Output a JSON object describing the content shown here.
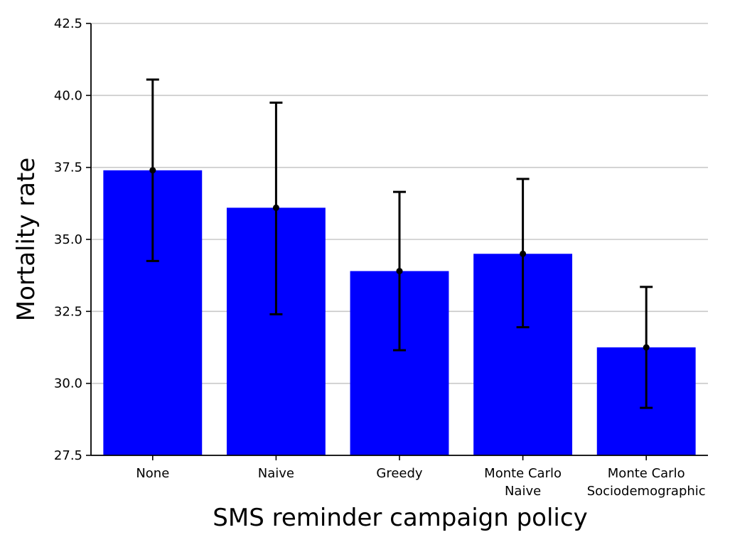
{
  "chart_data": {
    "type": "bar",
    "categories": [
      [
        "None"
      ],
      [
        "Naive"
      ],
      [
        "Greedy"
      ],
      [
        "Monte Carlo",
        "Naive"
      ],
      [
        "Monte Carlo",
        "Sociodemographic"
      ]
    ],
    "values": [
      37.4,
      36.1,
      33.9,
      34.5,
      31.25
    ],
    "error_low": [
      34.25,
      32.4,
      31.15,
      31.95,
      29.15
    ],
    "error_high": [
      40.55,
      39.75,
      36.65,
      37.1,
      33.35
    ],
    "xlabel": "SMS reminder campaign policy",
    "ylabel": "Mortality rate",
    "ylim": [
      27.5,
      42.5
    ],
    "yticks": [
      "27.5",
      "30.0",
      "32.5",
      "35.0",
      "37.5",
      "40.0",
      "42.5"
    ],
    "grid": "horizontal",
    "bar_color": "#0000ff",
    "error_color": "#000000",
    "grid_color": "#c8c8c8"
  }
}
